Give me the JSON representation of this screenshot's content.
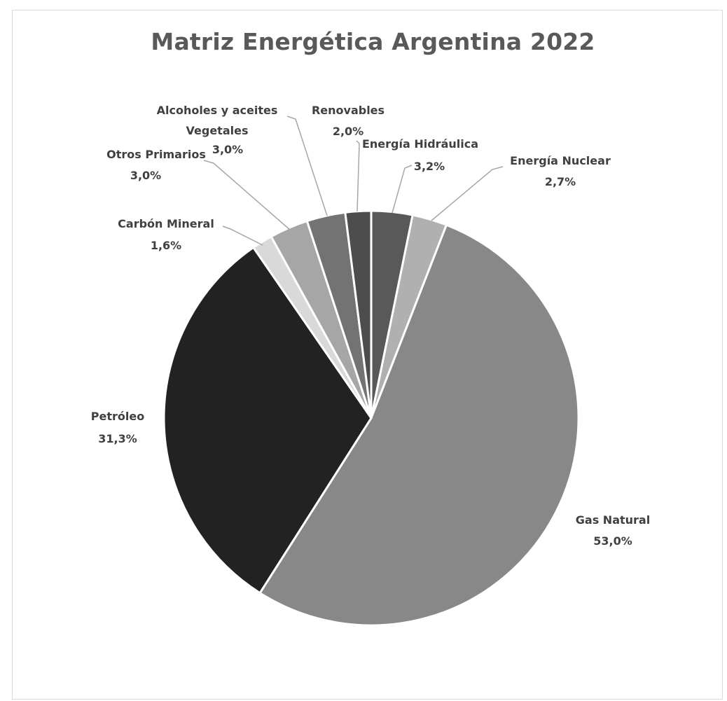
{
  "chart_data": {
    "type": "pie",
    "title": "Matriz Energética Argentina 2022",
    "slices": [
      {
        "label": "Energía Hidráulica",
        "value": 3.2,
        "value_label": "3,2%",
        "color": "#595959"
      },
      {
        "label": "Energía Nuclear",
        "value": 2.7,
        "value_label": "2,7%",
        "color": "#b0b0b0"
      },
      {
        "label": "Gas Natural",
        "value": 53.0,
        "value_label": "53,0%",
        "color": "#888888"
      },
      {
        "label": "Petróleo",
        "value": 31.3,
        "value_label": "31,3%",
        "color": "#222222"
      },
      {
        "label": "Carbón Mineral",
        "value": 1.6,
        "value_label": "1,6%",
        "color": "#d9d9d9"
      },
      {
        "label": "Otros Primarios",
        "value": 3.0,
        "value_label": "3,0%",
        "color": "#a6a6a6"
      },
      {
        "label": "Alcoholes y aceites Vegetales",
        "value": 3.0,
        "value_label": "3,0%",
        "color": "#737373"
      },
      {
        "label": "Renovables",
        "value": 2.0,
        "value_label": "2,0%",
        "color": "#4d4d4d"
      }
    ],
    "start_angle_deg": 0,
    "direction": "clockwise",
    "legend": "none",
    "data_labels": "outside with leader lines"
  }
}
